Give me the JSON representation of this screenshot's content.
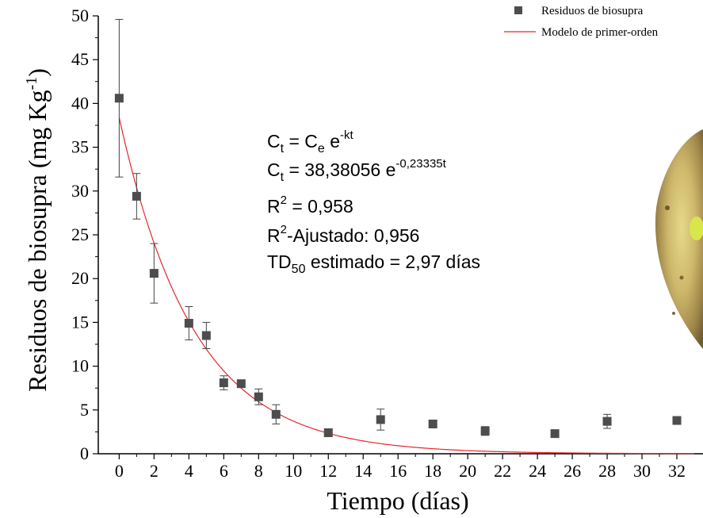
{
  "chart_data": {
    "type": "scatter",
    "xlabel": "Tiempo (días)",
    "ylabel": {
      "main": "Residuos de biosupra (mg Kg",
      "sup": "-1",
      "close": ")"
    },
    "xlim": [
      -1.2,
      33.5
    ],
    "ylim": [
      0,
      50
    ],
    "xticks": [
      0,
      2,
      4,
      6,
      8,
      10,
      12,
      14,
      16,
      18,
      20,
      22,
      24,
      26,
      28,
      30,
      32
    ],
    "yticks": [
      0,
      5,
      10,
      15,
      20,
      25,
      30,
      35,
      40,
      45,
      50
    ],
    "series": [
      {
        "name": "Residuos de biosupra",
        "kind": "points",
        "color": "#4d4d4d",
        "x": [
          0,
          1,
          2,
          4,
          5,
          6,
          7,
          8,
          9,
          12,
          15,
          18,
          21,
          25,
          28,
          32
        ],
        "values": [
          40.6,
          29.4,
          20.6,
          14.9,
          13.5,
          8.1,
          8.0,
          6.5,
          4.5,
          2.4,
          3.9,
          3.4,
          2.6,
          2.3,
          3.7,
          3.8
        ],
        "yerr": [
          9.0,
          2.6,
          3.4,
          1.9,
          1.5,
          0.8,
          0.3,
          0.9,
          1.1,
          0.3,
          1.2,
          0.3,
          0.5,
          0.3,
          0.8,
          0.3
        ]
      },
      {
        "name": "Modelo de primer-orden",
        "kind": "model",
        "color": "#e8262b",
        "C0": 38.38056,
        "k": 0.23335
      }
    ],
    "legend_position": "top-right",
    "annotations": [
      {
        "base": "C",
        "sub": "t",
        "rest": " = C",
        "sub2": "e",
        "rest2": " e",
        "sup": "-kt"
      },
      {
        "base": "C",
        "sub": "t",
        "rest": " = 38,38056 e",
        "sup": "-0,23335t"
      },
      {
        "base": "R",
        "sup": "2",
        "rest": " = 0,958"
      },
      {
        "base": "R",
        "sup": "2",
        "rest": "-Ajustado: 0,956"
      },
      {
        "base": "TD",
        "sub": "50",
        "rest": " estimado = 2,97 días"
      }
    ]
  },
  "decor": {
    "image": "potato-photo-edge"
  }
}
